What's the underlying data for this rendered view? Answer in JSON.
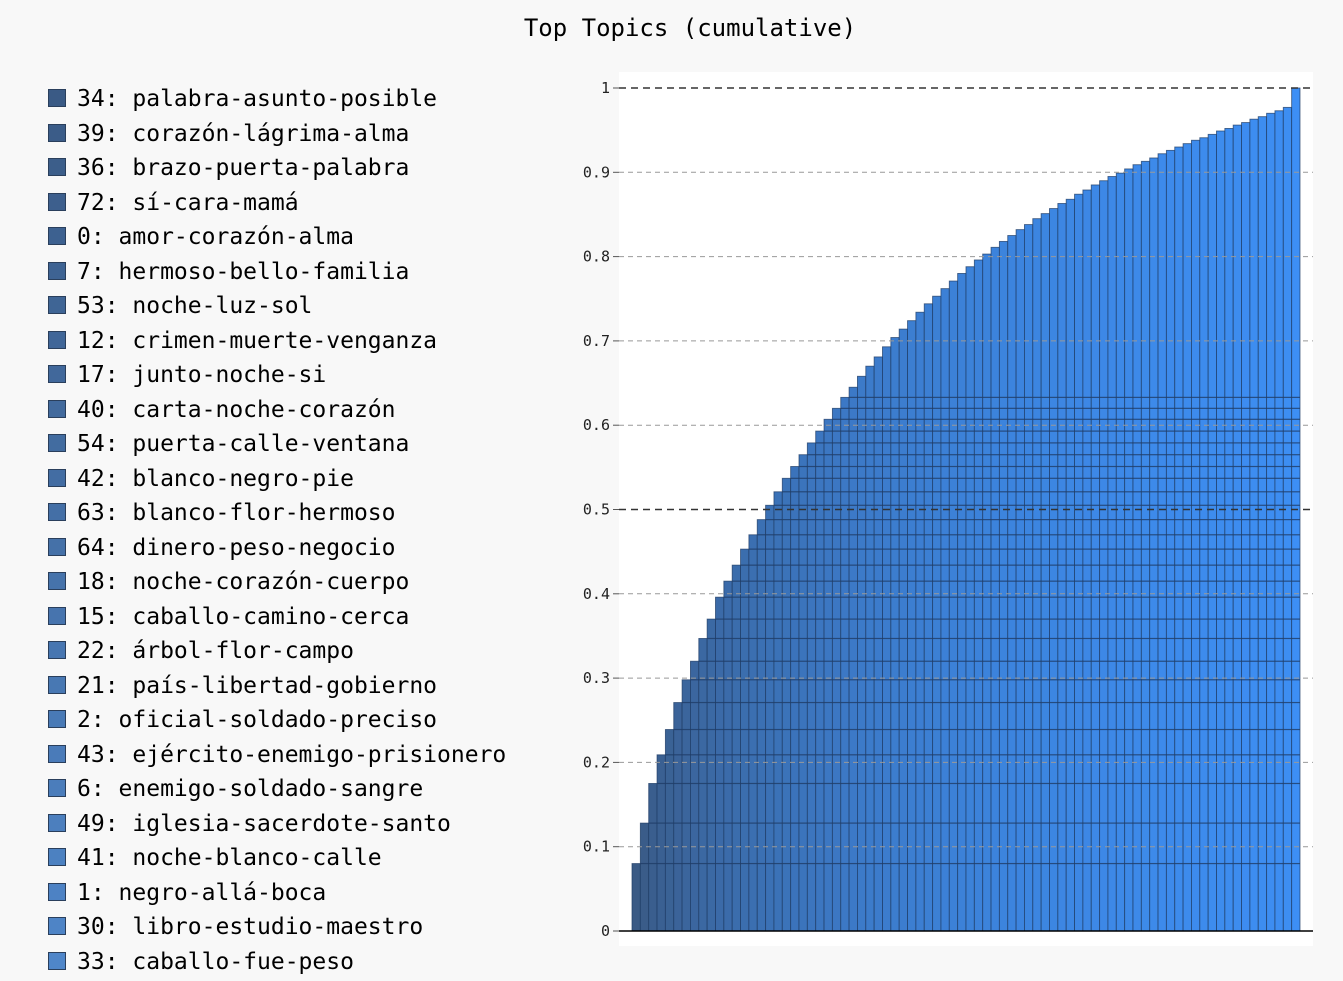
{
  "chart_data": {
    "type": "bar",
    "title": "Top Topics (cumulative)",
    "ylim": [
      0,
      1
    ],
    "y_ticks": [
      "0",
      "0.1",
      "0.2",
      "0.3",
      "0.4",
      "0.5",
      "0.6",
      "0.7",
      "0.8",
      "0.9",
      "1"
    ],
    "grid": "horizontal dashed",
    "legend_position": "left",
    "bar_count": 80,
    "values": [
      0.08,
      0.128,
      0.175,
      0.209,
      0.239,
      0.271,
      0.298,
      0.32,
      0.347,
      0.37,
      0.396,
      0.415,
      0.434,
      0.453,
      0.47,
      0.488,
      0.505,
      0.521,
      0.537,
      0.551,
      0.565,
      0.579,
      0.593,
      0.607,
      0.62,
      0.633,
      0.645,
      0.658,
      0.67,
      0.681,
      0.693,
      0.704,
      0.714,
      0.724,
      0.734,
      0.744,
      0.753,
      0.762,
      0.771,
      0.78,
      0.788,
      0.796,
      0.803,
      0.811,
      0.818,
      0.825,
      0.832,
      0.838,
      0.845,
      0.851,
      0.857,
      0.863,
      0.868,
      0.874,
      0.879,
      0.885,
      0.89,
      0.895,
      0.899,
      0.904,
      0.909,
      0.913,
      0.917,
      0.922,
      0.926,
      0.93,
      0.934,
      0.938,
      0.941,
      0.945,
      0.949,
      0.952,
      0.956,
      0.959,
      0.963,
      0.966,
      0.97,
      0.973,
      0.977,
      1.0
    ],
    "series": [
      {
        "name": "34: palabra-asunto-posible",
        "value": 0.08
      },
      {
        "name": "39: corazón-lágrima-alma",
        "value": 0.048
      },
      {
        "name": "36: brazo-puerta-palabra",
        "value": 0.047
      },
      {
        "name": "72: sí-cara-mamá",
        "value": 0.034
      },
      {
        "name": "0: amor-corazón-alma",
        "value": 0.03
      },
      {
        "name": "7: hermoso-bello-familia",
        "value": 0.032
      },
      {
        "name": "53: noche-luz-sol",
        "value": 0.027
      },
      {
        "name": "12: crimen-muerte-venganza",
        "value": 0.022
      },
      {
        "name": "17: junto-noche-si",
        "value": 0.027
      },
      {
        "name": "40: carta-noche-corazón",
        "value": 0.023
      },
      {
        "name": "54: puerta-calle-ventana",
        "value": 0.026
      },
      {
        "name": "42: blanco-negro-pie",
        "value": 0.019
      },
      {
        "name": "63: blanco-flor-hermoso",
        "value": 0.019
      },
      {
        "name": "64: dinero-peso-negocio",
        "value": 0.019
      },
      {
        "name": "18: noche-corazón-cuerpo",
        "value": 0.017
      },
      {
        "name": "15: caballo-camino-cerca",
        "value": 0.018
      },
      {
        "name": "22: árbol-flor-campo",
        "value": 0.017
      },
      {
        "name": "21: país-libertad-gobierno",
        "value": 0.016
      },
      {
        "name": "2: oficial-soldado-preciso",
        "value": 0.016
      },
      {
        "name": "43: ejército-enemigo-prisionero",
        "value": 0.014
      },
      {
        "name": "6: enemigo-soldado-sangre",
        "value": 0.014
      },
      {
        "name": "49: iglesia-sacerdote-santo",
        "value": 0.014
      },
      {
        "name": "41: noche-blanco-calle",
        "value": 0.014
      },
      {
        "name": "1: negro-allá-boca",
        "value": 0.014
      },
      {
        "name": "30: libro-estudio-maestro",
        "value": 0.013
      },
      {
        "name": "33: caballo-fue-peso",
        "value": 0.013
      }
    ],
    "colors": {
      "dark": "#3a5a85",
      "bright": "#3d8ff5",
      "bar_outline": "#1f3c66",
      "grid": "#999999",
      "grid_major": "#333333",
      "plot_bg": "#ffffff",
      "page_bg": "#f8f8f8"
    }
  }
}
